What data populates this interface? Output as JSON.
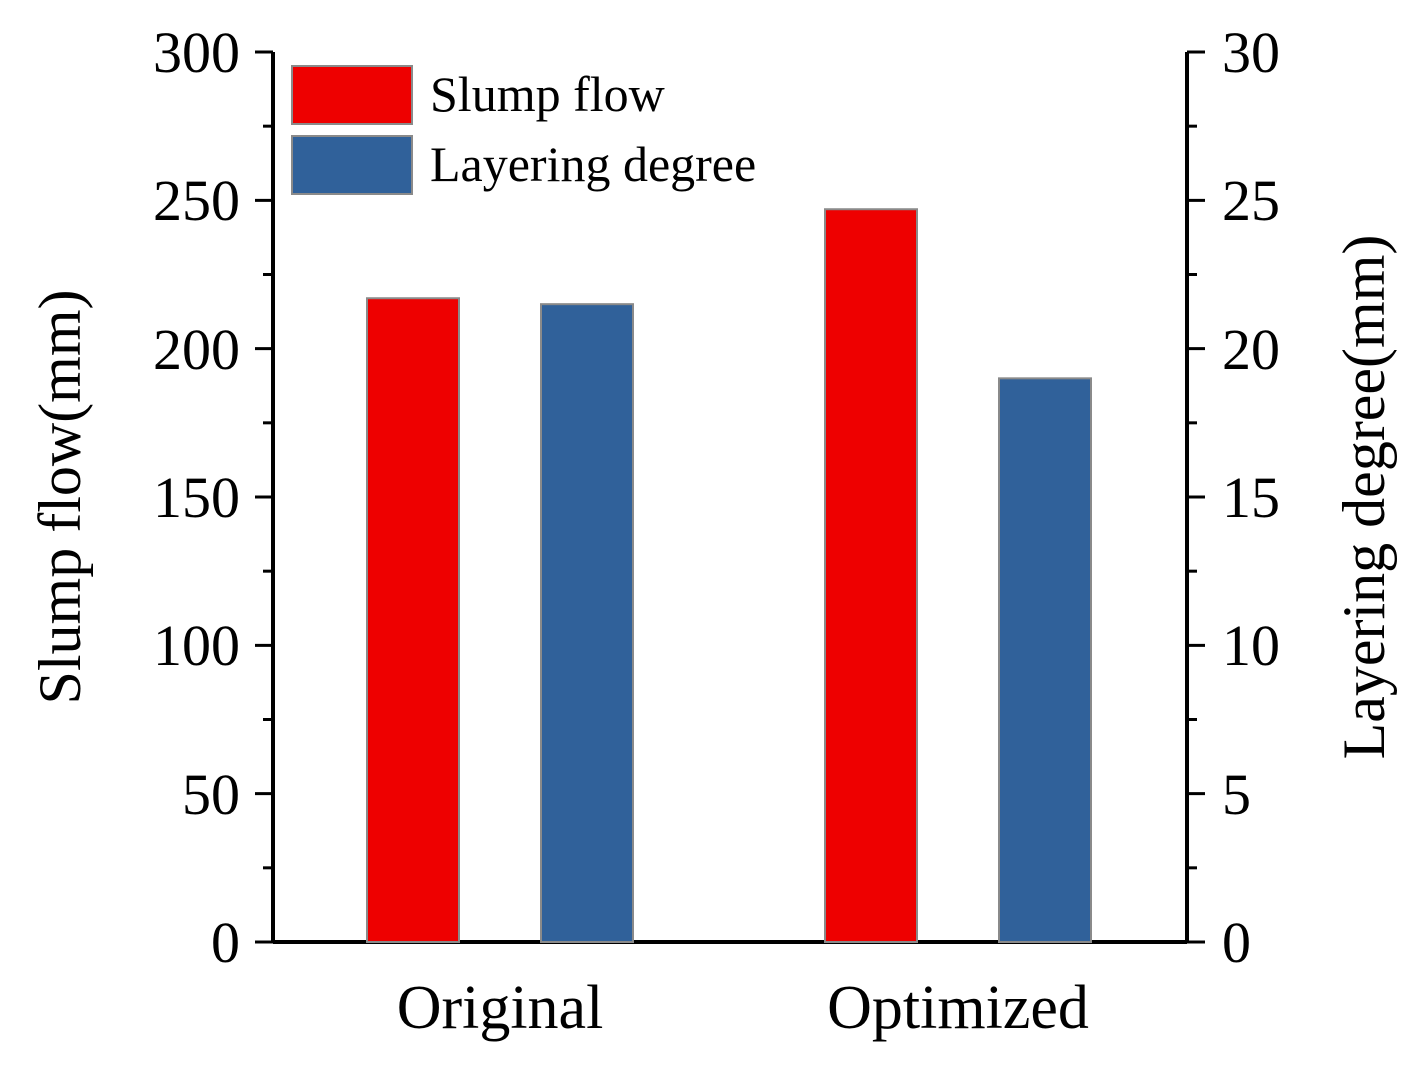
{
  "chart_data": {
    "type": "bar",
    "categories": [
      "Original",
      "Optimized"
    ],
    "series": [
      {
        "name": "Slump flow",
        "axis": "left",
        "color": "#ee0000",
        "values": [
          217,
          247
        ]
      },
      {
        "name": "Layering degree",
        "axis": "right",
        "color": "#30619a",
        "values": [
          21.5,
          19
        ]
      }
    ],
    "ylabel": "Slump flow(mm)",
    "y2label": "Layering degree(mm)",
    "ylim": [
      0,
      300
    ],
    "y2lim": [
      0,
      30
    ],
    "yticks": [
      "0",
      "50",
      "100",
      "150",
      "200",
      "250",
      "300"
    ],
    "y2ticks": [
      "0",
      "5",
      "10",
      "15",
      "20",
      "25",
      "30"
    ],
    "legend": {
      "position": "top-left",
      "entries": [
        "Slump flow",
        "Layering degree"
      ]
    },
    "grid": false
  }
}
